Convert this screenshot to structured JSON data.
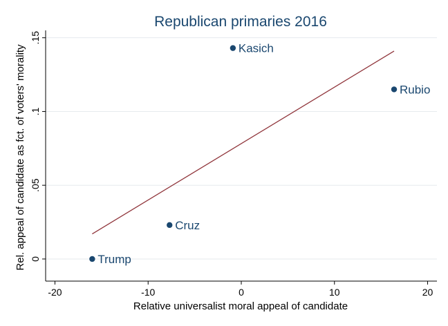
{
  "chart_data": {
    "type": "scatter",
    "title": "Republican primaries 2016",
    "xlabel": "Relative universalist moral appeal of candidate",
    "ylabel": "Rel. appeal of candidate as fct. of voters' morality",
    "xlim": [
      -21,
      21
    ],
    "ylim": [
      -0.015,
      0.155
    ],
    "x_ticks": [
      -20,
      -10,
      0,
      10,
      20
    ],
    "x_tick_labels": [
      "-20",
      "-10",
      "0",
      "10",
      "20"
    ],
    "y_ticks": [
      0,
      0.05,
      0.1,
      0.15
    ],
    "y_tick_labels": [
      "0",
      ".05",
      ".1",
      ".15"
    ],
    "grid": "horizontal",
    "points": [
      {
        "label": "Kasich",
        "x": -0.9,
        "y": 0.143
      },
      {
        "label": "Rubio",
        "x": 16.4,
        "y": 0.115
      },
      {
        "label": "Cruz",
        "x": -7.7,
        "y": 0.023
      },
      {
        "label": "Trump",
        "x": -16.0,
        "y": 0.0
      }
    ],
    "fit_line": {
      "x": [
        -16.0,
        16.4
      ],
      "y": [
        0.017,
        0.141
      ]
    },
    "colors": {
      "points": "#1a476f",
      "fit_line": "#90353b",
      "title": "#1a476f"
    }
  }
}
